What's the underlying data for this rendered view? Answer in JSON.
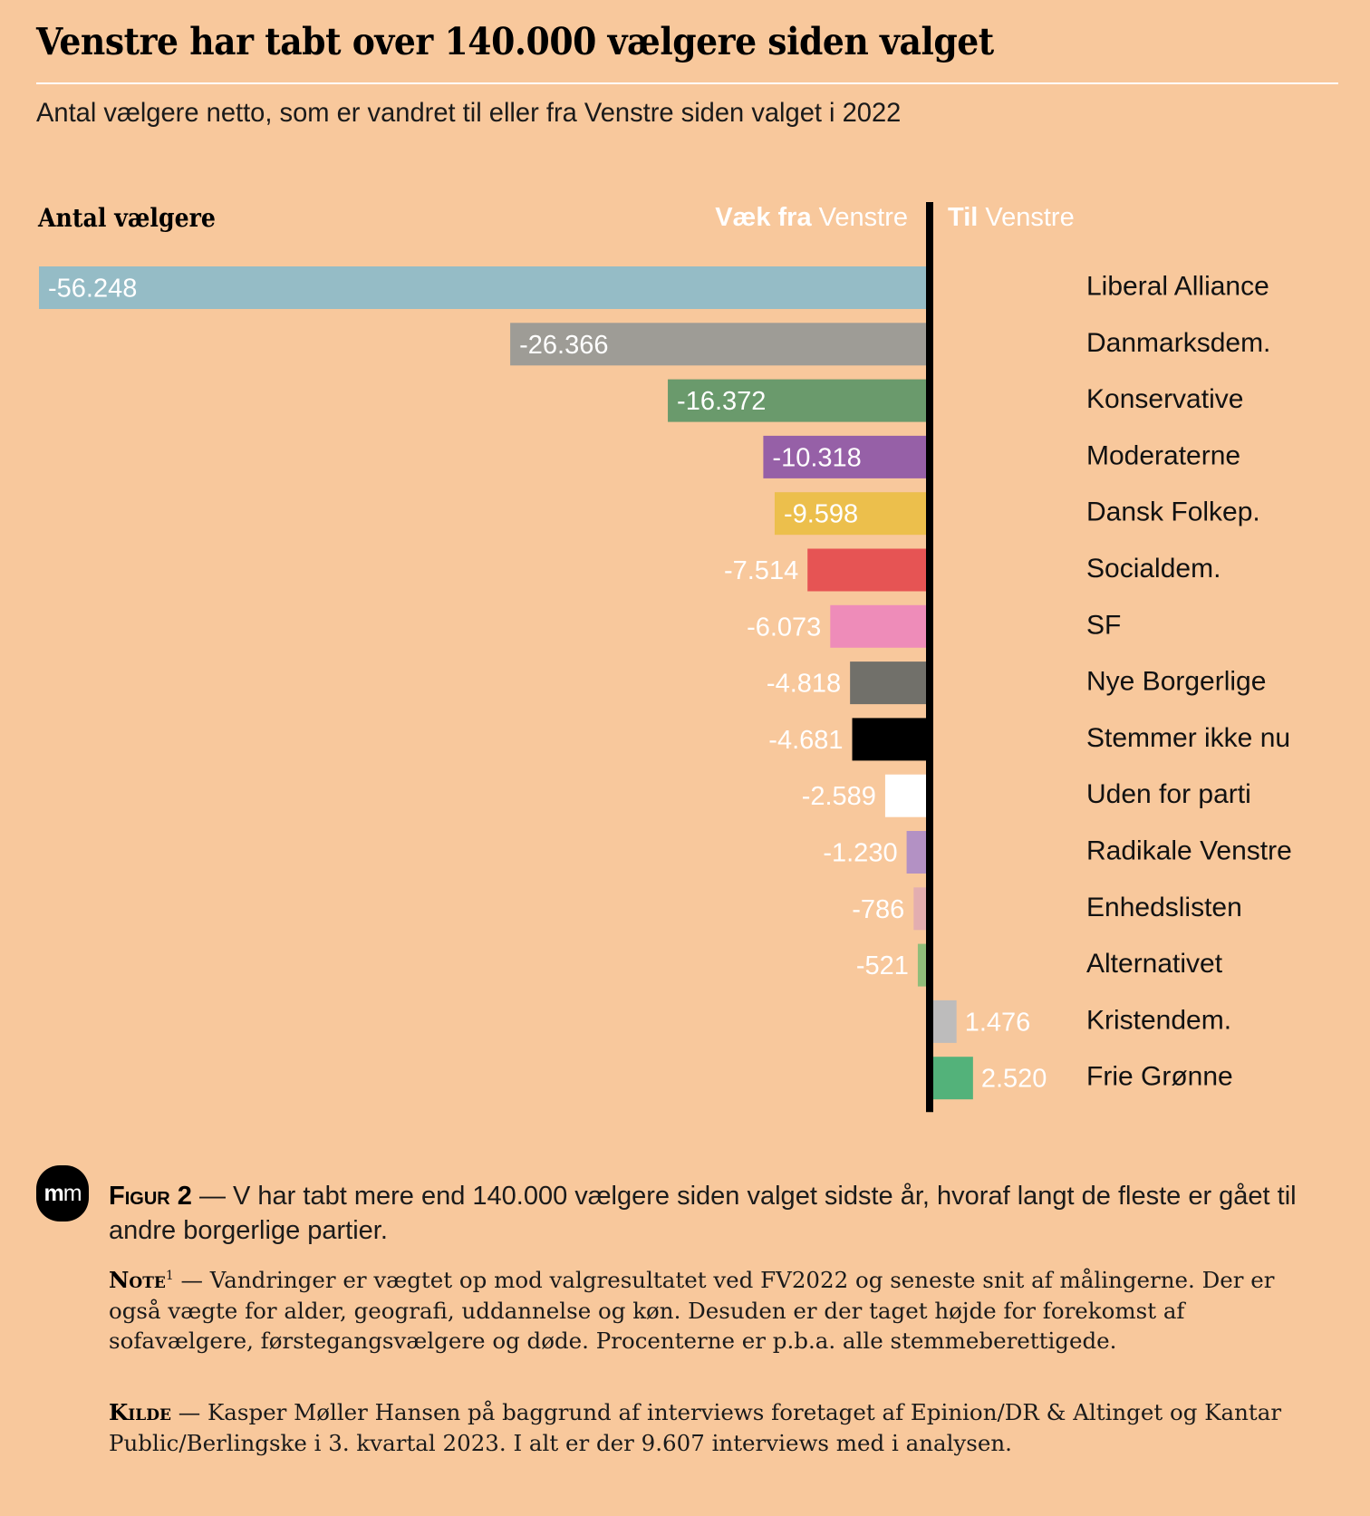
{
  "header": {
    "title": "Venstre har tabt over 140.000 vælgere siden valget",
    "subtitle": "Antal vælgere netto, som er vandret til eller fra Venstre siden valget i 2022"
  },
  "axis_labels": {
    "y_title": "Antal vælgere",
    "left_bold": "Væk fra",
    "left_rest": " Venstre",
    "right_bold": "Til",
    "right_rest": " Venstre"
  },
  "chart_data": {
    "type": "bar",
    "orientation": "horizontal-diverging",
    "title": "Venstre har tabt over 140.000 vælgere siden valget",
    "subtitle": "Antal vælgere netto, som er vandret til eller fra Venstre siden valget i 2022",
    "xlabel": "",
    "ylabel": "Antal vælgere",
    "direction_labels": {
      "negative": "Væk fra Venstre",
      "positive": "Til Venstre"
    },
    "categories": [
      "Liberal Alliance",
      "Danmarksdem.",
      "Konservative",
      "Moderaterne",
      "Dansk Folkep.",
      "Socialdem.",
      "SF",
      "Nye Borgerlige",
      "Stemmer ikke nu",
      "Uden for parti",
      "Radikale Venstre",
      "Enhedslisten",
      "Alternativet",
      "Kristendem.",
      "Frie Grønne"
    ],
    "values": [
      -56248,
      -26366,
      -16372,
      -10318,
      -9598,
      -7514,
      -6073,
      -4818,
      -4681,
      -2589,
      -1230,
      -786,
      -521,
      1476,
      2520
    ],
    "value_labels": [
      "-56.248",
      "-26.366",
      "-16.372",
      "-10.318",
      "-9.598",
      "-7.514",
      "-6.073",
      "-4.818",
      "-4.681",
      "-2.589",
      "-1.230",
      "-786",
      "-521",
      "1.476",
      "2.520"
    ],
    "colors": [
      "#95bcc6",
      "#9e9c96",
      "#6a9a6c",
      "#9660a7",
      "#ecbf4c",
      "#e65454",
      "#ee8cb9",
      "#71706a",
      "#000000",
      "#ffffff",
      "#b391c4",
      "#e3aeb0",
      "#8fbd7a",
      "#bdbcbc",
      "#53b27a"
    ],
    "xlim": [
      -56248,
      2520
    ],
    "grid": false,
    "legend": "none"
  },
  "caption": {
    "logo_text_a": "m",
    "logo_text_b": "m",
    "figure_label": "Figur 2",
    "figure_text": " — V har tabt mere end 140.000 vælgere siden valget sidste år, hvoraf langt de fleste er gået til andre borgerlige partier.",
    "note_label": "Note",
    "note_sup": "1",
    "note_text": " — Vandringer er vægtet op mod valgresultatet ved FV2022 og seneste snit af målingerne. Der er også vægte for alder, geografi, uddannelse og køn. Desuden er der taget højde for forekomst af sofavælgere, førstegangsvælgere og døde. Procenterne er p.b.a. alle stemmeberettigede.",
    "source_label": "Kilde",
    "source_text": " — Kasper Møller Hansen på baggrund af interviews foretaget af Epinion/DR & Altinget og Kantar Public/Berlingske i 3. kvartal 2023. I alt er der 9.607 interviews med i analysen."
  },
  "colors": {
    "background": "#f8c89c",
    "axis": "#000000",
    "value_text": "#ffffff"
  }
}
